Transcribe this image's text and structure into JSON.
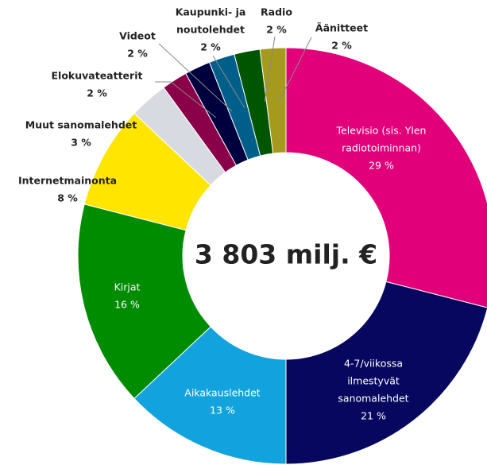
{
  "chart_data": {
    "type": "donut",
    "center_label": "3 803 milj. €",
    "categories": [
      [
        "Televisio (sis. Ylen",
        "radiotoiminnan)"
      ],
      [
        "4-7/viikossa",
        "ilmestyvät",
        "sanomalehdet"
      ],
      [
        "Aikakauslehdet"
      ],
      [
        "Kirjat"
      ],
      [
        "Internetmainonta"
      ],
      [
        "Muut sanomalehdet"
      ],
      [
        "Elokuvateatterit"
      ],
      [
        "Videot"
      ],
      [
        "Kaupunki- ja",
        "noutolehdet"
      ],
      [
        "Radio"
      ],
      [
        "Äänitteet"
      ]
    ],
    "values": [
      29,
      21,
      13,
      16,
      8,
      3,
      2,
      2,
      2,
      2,
      2
    ],
    "value_labels": [
      "29 %",
      "21 %",
      "13 %",
      "16 %",
      "8 %",
      "3 %",
      "2 %",
      "2 %",
      "2 %",
      "2 %",
      "2 %"
    ],
    "colors": [
      "#e2007a",
      "#07075f",
      "#12a3df",
      "#008c00",
      "#ffe500",
      "#d7dbe1",
      "#8a0049",
      "#00003f",
      "#005f8a",
      "#005500",
      "#a59a1c"
    ]
  }
}
